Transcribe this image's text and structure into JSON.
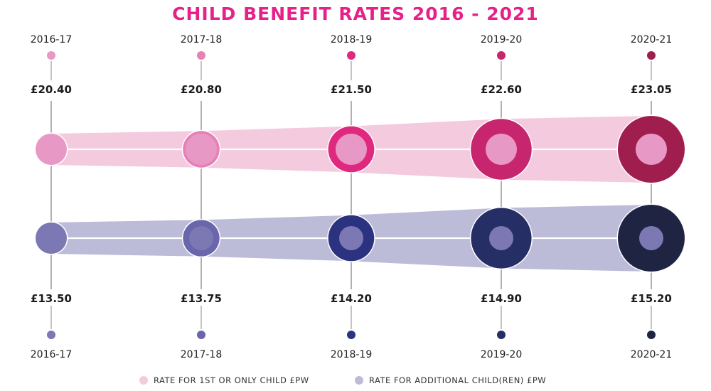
{
  "chart_data": {
    "type": "line",
    "title": "CHILD BENEFIT RATES 2016 - 2021",
    "categories": [
      "2016-17",
      "2017-18",
      "2018-19",
      "2019-20",
      "2020-21"
    ],
    "series": [
      {
        "name": "RATE FOR 1ST OR ONLY CHILD £PW",
        "values": [
          20.4,
          20.8,
          21.5,
          22.6,
          23.05
        ],
        "labels": [
          "£20.40",
          "£20.80",
          "£21.50",
          "£22.60",
          "£23.05"
        ],
        "band_color": "#f4cadf",
        "marker_colors": [
          "#e898c4",
          "#e680b6",
          "#e0287f",
          "#c8256f",
          "#a01e4e"
        ]
      },
      {
        "name": "RATE FOR ADDITIONAL CHILD(REN) £PW",
        "values": [
          13.5,
          13.75,
          14.2,
          14.9,
          15.2
        ],
        "labels": [
          "£13.50",
          "£13.75",
          "£14.20",
          "£14.90",
          "£15.20"
        ],
        "band_color": "#bcbbd8",
        "marker_colors": [
          "#7b78b4",
          "#6a66ab",
          "#2b3380",
          "#262e66",
          "#1f2442"
        ]
      }
    ],
    "inner_colors": [
      "#e898c4",
      "#7b78b4"
    ],
    "legend_position": "bottom"
  }
}
